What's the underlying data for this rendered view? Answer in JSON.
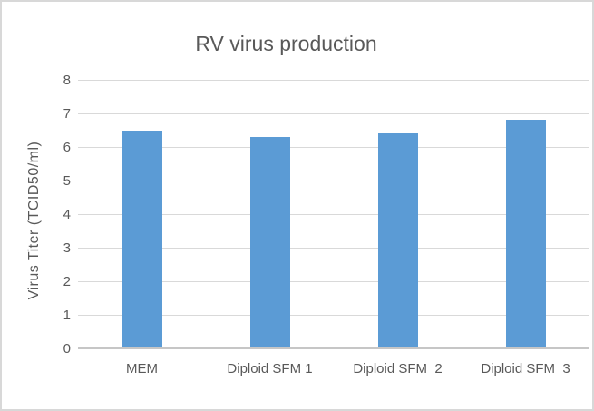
{
  "chart_data": {
    "type": "bar",
    "title": "RV virus production",
    "categories": [
      "MEM",
      "Diploid SFM 1",
      "Diploid SFM  2",
      "Diploid SFM  3"
    ],
    "values": [
      6.5,
      6.3,
      6.4,
      6.8
    ],
    "xlabel": "",
    "ylabel": "Virus Titer (TCID50/ml)",
    "ylim": [
      0,
      8
    ],
    "ytick_step": 1,
    "yticks": [
      0,
      1,
      2,
      3,
      4,
      5,
      6,
      7,
      8
    ],
    "grid": "horizontal",
    "legend": "none"
  },
  "colors": {
    "bar": "#5B9BD5",
    "gridline": "#D9D9D9",
    "axis_line": "#C6C6C6",
    "text": "#595959",
    "frame_border": "#D8D8D8",
    "background": "#FFFFFF"
  }
}
